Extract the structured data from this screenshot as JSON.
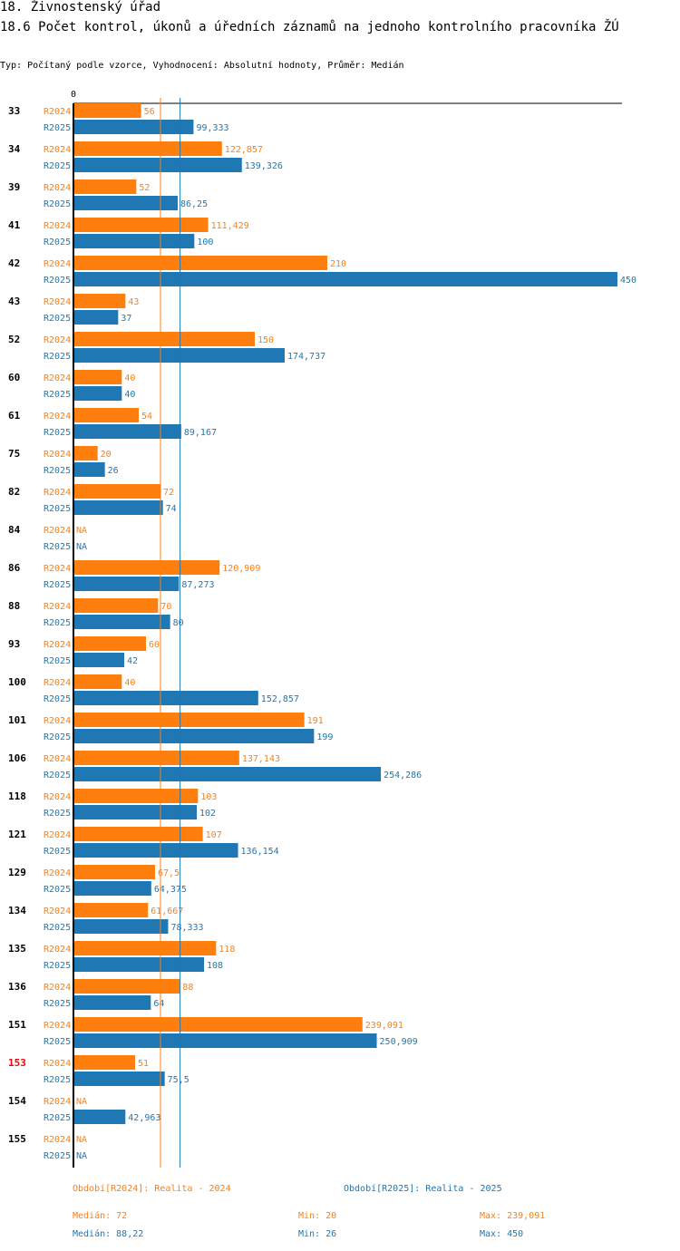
{
  "header": {
    "title": "18. Živnostenský úřad",
    "subtitle": "18.6 Počet kontrol, úkonů a úředních záznamů na jednoho kontrolního pracovníka ŽÚ",
    "info": "Typ: Počítaný podle vzorce, Vyhodnocení: Absolutní hodnoty, Průměr: Medián"
  },
  "colors": {
    "r2024": "#ff7f0e",
    "r2025": "#1f77b4",
    "highlight": "#ff0000",
    "text": "#000000"
  },
  "chart_data": {
    "type": "bar",
    "orientation": "horizontal",
    "axis_zero_label": "0",
    "xlim": [
      0,
      450
    ],
    "series": [
      {
        "name": "R2024",
        "label": "R2024"
      },
      {
        "name": "R2025",
        "label": "R2025"
      }
    ],
    "categories": [
      "33",
      "34",
      "39",
      "41",
      "42",
      "43",
      "52",
      "60",
      "61",
      "75",
      "82",
      "84",
      "86",
      "88",
      "93",
      "100",
      "101",
      "106",
      "118",
      "121",
      "129",
      "134",
      "135",
      "136",
      "151",
      "153",
      "154",
      "155"
    ],
    "highlighted_category": "153",
    "values": {
      "R2024": [
        56,
        122.857,
        52,
        111.429,
        210,
        43,
        150,
        40,
        54,
        20,
        72,
        null,
        120.909,
        70,
        60,
        40,
        191,
        137.143,
        103,
        107,
        67.5,
        61.667,
        118,
        88,
        239.091,
        51,
        null,
        null
      ],
      "R2025": [
        99.333,
        139.326,
        86.25,
        100,
        450,
        37,
        174.737,
        40,
        89.167,
        26,
        74,
        null,
        87.273,
        80,
        42,
        152.857,
        199,
        254.286,
        102,
        136.154,
        64.375,
        78.333,
        108,
        64,
        250.909,
        75.5,
        42.963,
        null
      ]
    },
    "value_labels": {
      "R2024": [
        "56",
        "122,857",
        "52",
        "111,429",
        "210",
        "43",
        "150",
        "40",
        "54",
        "20",
        "72",
        "NA",
        "120,909",
        "70",
        "60",
        "40",
        "191",
        "137,143",
        "103",
        "107",
        "67,5",
        "61,667",
        "118",
        "88",
        "239,091",
        "51",
        "NA",
        "NA"
      ],
      "R2025": [
        "99,333",
        "139,326",
        "86,25",
        "100",
        "450",
        "37",
        "174,737",
        "40",
        "89,167",
        "26",
        "74",
        "NA",
        "87,273",
        "80",
        "42",
        "152,857",
        "199",
        "254,286",
        "102",
        "136,154",
        "64,375",
        "78,333",
        "108",
        "64",
        "250,909",
        "75,5",
        "42,963",
        "NA"
      ]
    },
    "medians": {
      "R2024": 72,
      "R2025": 88.22
    }
  },
  "legend": {
    "r2024_period": "Období[R2024]: Realita - 2024",
    "r2025_period": "Období[R2025]: Realita - 2025",
    "r2024_median": "Medián: 72",
    "r2024_min": "Min: 20",
    "r2024_max": "Max: 239,091",
    "r2025_median": "Medián: 88,22",
    "r2025_min": "Min: 26",
    "r2025_max": "Max: 450"
  }
}
